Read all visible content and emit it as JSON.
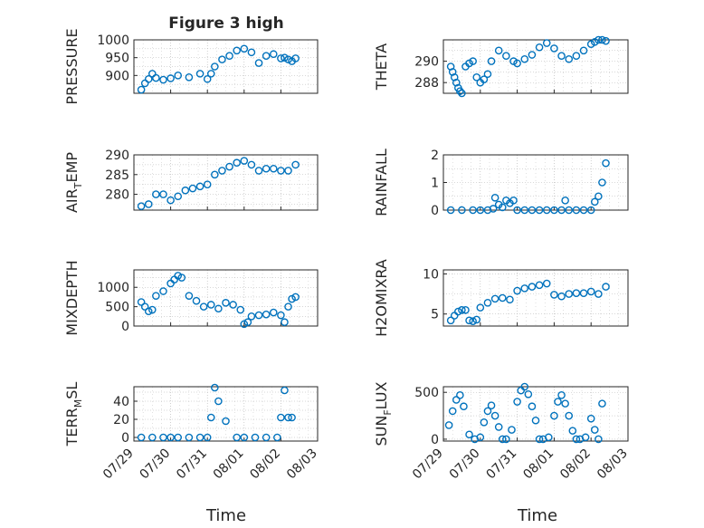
{
  "figure": {
    "title": "Figure 3 high",
    "xlabel": "Time",
    "x_tick_labels": [
      "07/29",
      "07/30",
      "07/31",
      "08/01",
      "08/02",
      "08/03"
    ]
  },
  "colors": {
    "marker": "#0072BD",
    "axis": "#262626",
    "grid": "#b0b0b0"
  },
  "chart_data": [
    {
      "type": "scatter",
      "ylabel": "PRESSURE",
      "ylim": [
        850,
        1000
      ],
      "yticks": [
        900,
        950,
        1000
      ],
      "grid": true,
      "x": [
        0.2,
        0.3,
        0.4,
        0.5,
        0.6,
        0.8,
        1.0,
        1.2,
        1.5,
        1.8,
        2.0,
        2.1,
        2.2,
        2.4,
        2.6,
        2.8,
        3.0,
        3.2,
        3.4,
        3.6,
        3.8,
        4.0,
        4.1,
        4.2,
        4.3,
        4.4
      ],
      "y": [
        860,
        878,
        890,
        905,
        893,
        888,
        892,
        900,
        895,
        905,
        890,
        905,
        925,
        945,
        955,
        970,
        975,
        965,
        935,
        955,
        960,
        948,
        950,
        945,
        940,
        948
      ]
    },
    {
      "type": "scatter",
      "ylabel": "THETA",
      "ylim": [
        287,
        292
      ],
      "yticks": [
        288,
        290
      ],
      "grid": true,
      "x": [
        0.2,
        0.25,
        0.3,
        0.35,
        0.4,
        0.45,
        0.5,
        0.6,
        0.7,
        0.8,
        0.9,
        1.0,
        1.1,
        1.2,
        1.3,
        1.5,
        1.7,
        1.9,
        2.0,
        2.2,
        2.4,
        2.6,
        2.8,
        3.0,
        3.2,
        3.4,
        3.6,
        3.8,
        4.0,
        4.1,
        4.2,
        4.3,
        4.4
      ],
      "y": [
        289.5,
        289,
        288.5,
        288,
        287.5,
        287.2,
        287,
        289.5,
        289.8,
        290,
        288.5,
        288,
        288.3,
        288.8,
        290,
        291,
        290.5,
        290,
        289.8,
        290.2,
        290.6,
        291.3,
        291.7,
        291.2,
        290.5,
        290.2,
        290.5,
        291,
        291.6,
        291.8,
        292,
        292,
        291.9
      ]
    },
    {
      "type": "scatter",
      "ylabel": "AIR_TEMP",
      "ylim": [
        276,
        290
      ],
      "yticks": [
        280,
        285,
        290
      ],
      "grid": true,
      "x": [
        0.2,
        0.4,
        0.6,
        0.8,
        1.0,
        1.2,
        1.4,
        1.6,
        1.8,
        2.0,
        2.2,
        2.4,
        2.6,
        2.8,
        3.0,
        3.2,
        3.4,
        3.6,
        3.8,
        4.0,
        4.2,
        4.4
      ],
      "y": [
        277,
        277.5,
        280,
        280,
        278.5,
        279.5,
        281,
        281.5,
        282,
        282.5,
        285,
        286,
        287,
        288,
        288.5,
        287.5,
        286,
        286.5,
        286.5,
        286,
        286,
        287.5
      ]
    },
    {
      "type": "scatter",
      "ylabel": "RAINFALL",
      "ylim": [
        0,
        2
      ],
      "yticks": [
        0,
        1,
        2
      ],
      "grid": true,
      "x": [
        0.2,
        0.5,
        0.8,
        1.0,
        1.2,
        1.35,
        1.4,
        1.5,
        1.6,
        1.7,
        1.8,
        1.9,
        2.0,
        2.2,
        2.4,
        2.6,
        2.8,
        3.0,
        3.2,
        3.3,
        3.4,
        3.6,
        3.8,
        4.0,
        4.1,
        4.2,
        4.3,
        4.4
      ],
      "y": [
        0,
        0,
        0,
        0,
        0,
        0.05,
        0.45,
        0.2,
        0.1,
        0.35,
        0.25,
        0.35,
        0,
        0,
        0,
        0,
        0,
        0,
        0,
        0.35,
        0,
        0,
        0,
        0,
        0.3,
        0.5,
        1.0,
        1.7
      ]
    },
    {
      "type": "scatter",
      "ylabel": "MIXDEPTH",
      "ylim": [
        0,
        1450
      ],
      "yticks": [
        0,
        500,
        1000
      ],
      "grid": true,
      "x": [
        0.2,
        0.3,
        0.4,
        0.5,
        0.6,
        0.8,
        1.0,
        1.1,
        1.2,
        1.3,
        1.5,
        1.7,
        1.9,
        2.1,
        2.3,
        2.5,
        2.7,
        2.9,
        3.0,
        3.1,
        3.2,
        3.4,
        3.6,
        3.8,
        4.0,
        4.1,
        4.2,
        4.3,
        4.4
      ],
      "y": [
        620,
        500,
        380,
        420,
        780,
        900,
        1100,
        1200,
        1300,
        1250,
        780,
        650,
        500,
        550,
        450,
        600,
        550,
        420,
        50,
        100,
        250,
        280,
        300,
        350,
        280,
        100,
        500,
        700,
        750
      ]
    },
    {
      "type": "scatter",
      "ylabel": "H2OMIXRA",
      "ylim": [
        3.5,
        10.5
      ],
      "yticks": [
        5,
        10
      ],
      "grid": true,
      "x": [
        0.2,
        0.3,
        0.4,
        0.5,
        0.6,
        0.7,
        0.8,
        0.9,
        1.0,
        1.2,
        1.4,
        1.6,
        1.8,
        2.0,
        2.2,
        2.4,
        2.6,
        2.8,
        3.0,
        3.2,
        3.4,
        3.6,
        3.8,
        4.0,
        4.2,
        4.4
      ],
      "y": [
        4.2,
        4.8,
        5.3,
        5.5,
        5.5,
        4.2,
        4.1,
        4.3,
        5.8,
        6.4,
        6.9,
        7.0,
        6.8,
        7.9,
        8.2,
        8.4,
        8.6,
        8.8,
        7.4,
        7.2,
        7.5,
        7.6,
        7.6,
        7.8,
        7.5,
        8.4
      ]
    },
    {
      "type": "scatter",
      "ylabel": "TERR_MSL",
      "ylim": [
        -4,
        56
      ],
      "yticks": [
        0,
        20,
        40
      ],
      "grid": true,
      "x": [
        0.2,
        0.5,
        0.8,
        1.0,
        1.2,
        1.5,
        1.8,
        2.0,
        2.1,
        2.2,
        2.3,
        2.5,
        2.8,
        3.0,
        3.3,
        3.6,
        3.9,
        4.0,
        4.1,
        4.2,
        4.3
      ],
      "y": [
        0,
        0,
        0,
        0,
        0,
        0,
        0,
        0,
        22,
        55,
        40,
        18,
        0,
        0,
        0,
        0,
        0,
        22,
        52,
        22,
        22
      ]
    },
    {
      "type": "scatter",
      "ylabel": "SUN_FLUX",
      "ylim": [
        -20,
        560
      ],
      "yticks": [
        0,
        500
      ],
      "grid": true,
      "x": [
        0.15,
        0.25,
        0.35,
        0.45,
        0.55,
        0.7,
        0.85,
        1.0,
        1.1,
        1.2,
        1.3,
        1.4,
        1.5,
        1.6,
        1.7,
        1.85,
        2.0,
        2.1,
        2.2,
        2.3,
        2.4,
        2.5,
        2.6,
        2.7,
        2.85,
        3.0,
        3.1,
        3.2,
        3.3,
        3.4,
        3.5,
        3.6,
        3.7,
        3.85,
        4.0,
        4.1,
        4.2,
        4.3
      ],
      "y": [
        150,
        300,
        420,
        470,
        350,
        50,
        0,
        20,
        180,
        300,
        360,
        250,
        130,
        0,
        0,
        100,
        400,
        520,
        560,
        480,
        350,
        200,
        0,
        0,
        20,
        250,
        400,
        470,
        380,
        250,
        90,
        0,
        0,
        20,
        220,
        100,
        0,
        380
      ]
    }
  ]
}
